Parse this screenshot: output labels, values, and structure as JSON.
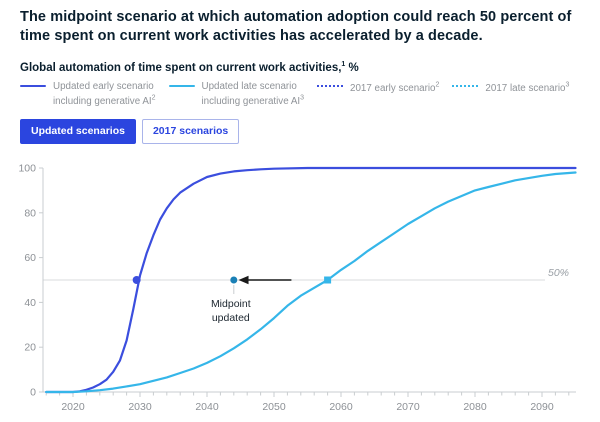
{
  "header": {
    "title": "The midpoint scenario at which automation adoption could reach 50 percent of time spent on current work activities has accelerated by a decade.",
    "subtitle": "Global automation of time spent on current work activities,",
    "subtitle_sup": "1",
    "subtitle_unit": " %"
  },
  "colors": {
    "dark_blue": "#3b4ede",
    "cyan": "#35b6e9",
    "button_blue": "#2b45df",
    "teal_dot": "#1a80b6",
    "text_dark": "#0a1f2e",
    "text_gray": "#8f9398",
    "tick_label_gray": "#8d9196",
    "axis_gray": "#c9cdd0",
    "ref_line_gray": "#e0e2e4",
    "arrow_black": "#1a1a1a"
  },
  "legend": {
    "items": [
      {
        "style": "solid",
        "color_key": "dark_blue",
        "line1": "Updated early scenario",
        "line1_sup": "",
        "line2": "including generative AI",
        "line2_sup": "2"
      },
      {
        "style": "solid",
        "color_key": "cyan",
        "line1": "Updated late scenario",
        "line1_sup": "",
        "line2": "including generative AI",
        "line2_sup": "3"
      },
      {
        "style": "dotted",
        "color_key": "dark_blue",
        "line1": "2017 early scenario",
        "line1_sup": "2",
        "line2": "",
        "line2_sup": ""
      },
      {
        "style": "dotted",
        "color_key": "cyan",
        "line1": "2017 late scenario",
        "line1_sup": "3",
        "line2": "",
        "line2_sup": ""
      }
    ]
  },
  "tabs": {
    "active": "Updated scenarios",
    "inactive": "2017 scenarios"
  },
  "chart_data": {
    "type": "line",
    "title": "Global automation of time spent on current work activities, %",
    "xlim": [
      2016,
      2095
    ],
    "ylim": [
      0,
      100
    ],
    "x_ticks": [
      2020,
      2030,
      2040,
      2050,
      2060,
      2070,
      2080,
      2090
    ],
    "y_ticks": [
      0,
      20,
      40,
      60,
      80,
      100
    ],
    "minor_tick_step_years": 2,
    "grid": false,
    "legend_position": "top",
    "reference_line": {
      "value": 50,
      "label": "50%"
    },
    "series": [
      {
        "name": "Updated early scenario including generative AI",
        "color_key": "dark_blue",
        "style": "solid",
        "midpoint_year": 2030,
        "points": [
          [
            2016,
            0
          ],
          [
            2018,
            0
          ],
          [
            2020,
            0
          ],
          [
            2021,
            0.3
          ],
          [
            2022,
            1
          ],
          [
            2023,
            2
          ],
          [
            2024,
            3.5
          ],
          [
            2025,
            5.5
          ],
          [
            2026,
            9
          ],
          [
            2027,
            14
          ],
          [
            2028,
            23
          ],
          [
            2029,
            37
          ],
          [
            2030,
            52
          ],
          [
            2031,
            62
          ],
          [
            2032,
            70
          ],
          [
            2033,
            77
          ],
          [
            2034,
            82
          ],
          [
            2035,
            86
          ],
          [
            2036,
            89
          ],
          [
            2038,
            93
          ],
          [
            2040,
            96
          ],
          [
            2042,
            97.5
          ],
          [
            2044,
            98.5
          ],
          [
            2046,
            99
          ],
          [
            2048,
            99.4
          ],
          [
            2050,
            99.7
          ],
          [
            2055,
            100
          ],
          [
            2060,
            100
          ],
          [
            2070,
            100
          ],
          [
            2080,
            100
          ],
          [
            2090,
            100
          ],
          [
            2095,
            100
          ]
        ]
      },
      {
        "name": "Updated late scenario including generative AI",
        "color_key": "cyan",
        "style": "solid",
        "midpoint_year": 2058,
        "points": [
          [
            2016,
            0
          ],
          [
            2018,
            0
          ],
          [
            2020,
            0
          ],
          [
            2022,
            0.3
          ],
          [
            2024,
            0.8
          ],
          [
            2026,
            1.5
          ],
          [
            2028,
            2.5
          ],
          [
            2030,
            3.5
          ],
          [
            2032,
            5
          ],
          [
            2034,
            6.5
          ],
          [
            2036,
            8.5
          ],
          [
            2038,
            10.5
          ],
          [
            2040,
            13
          ],
          [
            2042,
            16
          ],
          [
            2044,
            19.5
          ],
          [
            2046,
            23.5
          ],
          [
            2048,
            28
          ],
          [
            2050,
            33
          ],
          [
            2052,
            38.5
          ],
          [
            2054,
            43
          ],
          [
            2056,
            46.5
          ],
          [
            2058,
            50
          ],
          [
            2060,
            54.5
          ],
          [
            2062,
            58.5
          ],
          [
            2064,
            63
          ],
          [
            2066,
            67
          ],
          [
            2068,
            71
          ],
          [
            2070,
            75
          ],
          [
            2072,
            78.5
          ],
          [
            2074,
            82
          ],
          [
            2076,
            85
          ],
          [
            2078,
            87.5
          ],
          [
            2080,
            90
          ],
          [
            2082,
            91.5
          ],
          [
            2084,
            93
          ],
          [
            2086,
            94.5
          ],
          [
            2088,
            95.5
          ],
          [
            2090,
            96.5
          ],
          [
            2092,
            97.3
          ],
          [
            2095,
            98
          ]
        ]
      }
    ],
    "markers": [
      {
        "name": "early-midpoint-marker",
        "year": 2029.5,
        "value": 50,
        "shape": "circle",
        "size": 4,
        "color_key": "dark_blue"
      },
      {
        "name": "late-midpoint-marker",
        "year": 2058,
        "value": 50,
        "shape": "square",
        "size": 7,
        "color_key": "cyan"
      },
      {
        "name": "updated-midpoint-dot",
        "year": 2044,
        "value": 50,
        "shape": "circle",
        "size": 3.5,
        "color_key": "teal_dot"
      }
    ],
    "annotation": {
      "line1": "Midpoint",
      "line2": "updated",
      "arrow_from_year": 2052.6,
      "arrow_to_year": 2045.6,
      "at_value": 50
    }
  }
}
